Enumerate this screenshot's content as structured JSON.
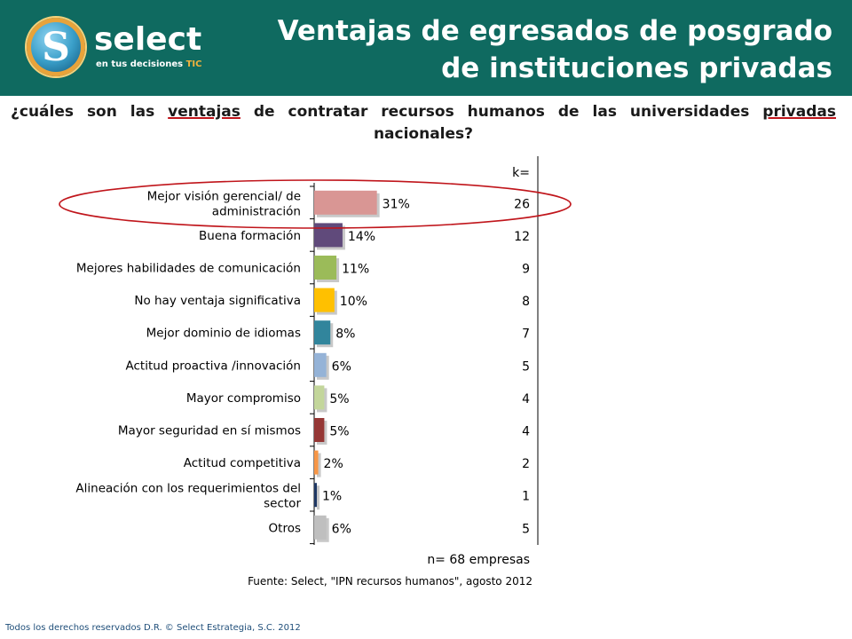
{
  "header": {
    "logo_word": "select",
    "logo_tagline": "en tus decisiones",
    "logo_tagline_accent": "TIC",
    "logo_letter": "S",
    "title_line1": "Ventajas de egresados de posgrado",
    "title_line2": "de instituciones privadas"
  },
  "question": {
    "part1": "¿cuáles son las ",
    "underlined1": "ventajas",
    "part2": " de contratar recursos humanos de las universidades ",
    "underlined2": "privadas",
    "part3": " nacionales?"
  },
  "chart_data": {
    "type": "bar",
    "orientation": "horizontal",
    "k_header": "k=",
    "categories": [
      "Mejor visión gerencial/ de administración",
      "Buena formación",
      "Mejores habilidades de comunicación",
      "No hay ventaja significativa",
      "Mejor dominio de idiomas",
      "Actitud proactiva /innovación",
      "Mayor compromiso",
      "Mayor seguridad en sí mismos",
      "Actitud competitiva",
      "Alineación con los requerimientos del sector",
      "Otros"
    ],
    "category_lines": [
      [
        "Mejor visión gerencial/ de",
        "administración"
      ],
      [
        "Buena formación"
      ],
      [
        "Mejores habilidades de comunicación"
      ],
      [
        "No hay ventaja significativa"
      ],
      [
        "Mejor dominio de idiomas"
      ],
      [
        "Actitud proactiva /innovación"
      ],
      [
        "Mayor compromiso"
      ],
      [
        "Mayor seguridad en sí mismos"
      ],
      [
        "Actitud competitiva"
      ],
      [
        "Alineación con los requerimientos del",
        "sector"
      ],
      [
        "Otros"
      ]
    ],
    "values": [
      31,
      14,
      11,
      10,
      8,
      6,
      5,
      5,
      2,
      1,
      6
    ],
    "value_labels": [
      "31%",
      "14%",
      "11%",
      "10%",
      "8%",
      "6%",
      "5%",
      "5%",
      "2%",
      "1%",
      "6%"
    ],
    "k_values": [
      "26",
      "12",
      "9",
      "8",
      "7",
      "5",
      "4",
      "4",
      "2",
      "1",
      "5"
    ],
    "colors": [
      "#d99694",
      "#604a7b",
      "#9bbb59",
      "#ffc000",
      "#31859c",
      "#95b3d7",
      "#c3d69b",
      "#953735",
      "#f79646",
      "#1f3864",
      "#bfbfbf"
    ],
    "highlight_color": "#c0151b",
    "n_note": "n= 68 empresas",
    "source": "Fuente: Select, \"IPN recursos humanos\", agosto 2012"
  },
  "footer": {
    "copyright": "Todos los derechos reservados D.R. © Select Estrategia, S.C. 2012"
  }
}
